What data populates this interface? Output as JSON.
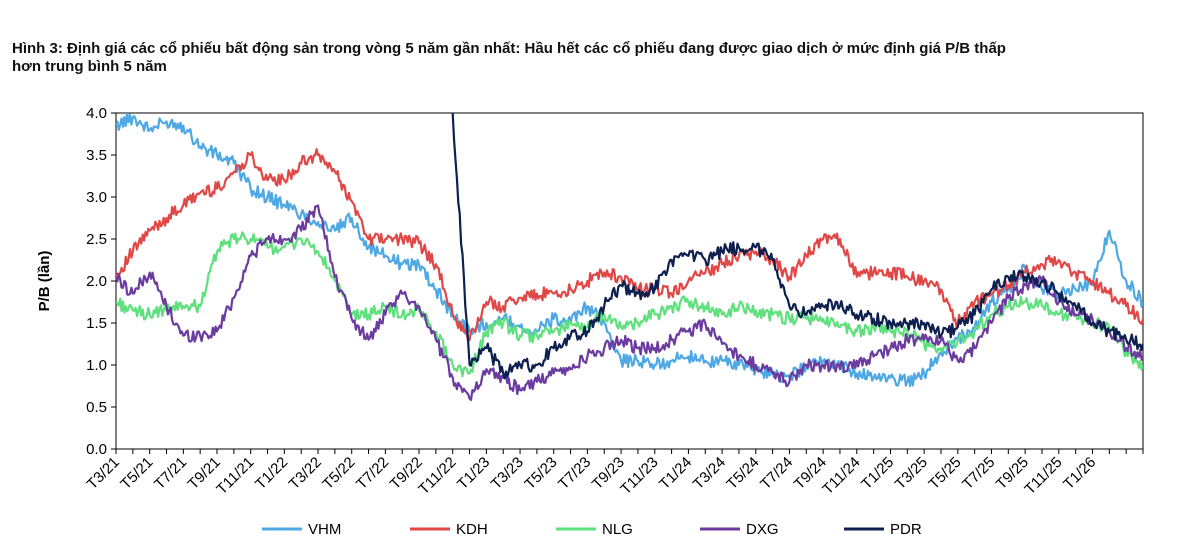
{
  "title_line1": "Hình 3: Định giá các cổ phiếu bất động sản trong vòng 5 năm gần nhất: Hầu hết các cổ phiếu đang được giao dịch ở mức định giá P/B thấp",
  "title_line2": "hơn trung bình 5 năm",
  "chart_data": {
    "type": "line",
    "title": "Hình 3: Định giá các cổ phiếu bất động sản trong vòng 5 năm gần nhất: Hầu hết các cổ phiếu đang được giao dịch ở mức định giá P/B thấp hơn trung bình 5 năm",
    "xlabel": "",
    "ylabel": "P/B (lần)",
    "ylim": [
      0,
      4
    ],
    "yticks": [
      "0.0",
      "0.5",
      "1.0",
      "1.5",
      "2.0",
      "2.5",
      "3.0",
      "3.5",
      "4.0"
    ],
    "xticks": [
      "T3/21",
      "T5/21",
      "T7/21",
      "T9/21",
      "T11/21",
      "T1/22",
      "T3/22",
      "T5/22",
      "T7/22",
      "T9/22",
      "T11/22",
      "T1/23",
      "T3/23",
      "T5/23",
      "T7/23",
      "T9/23",
      "T11/23",
      "T1/24",
      "T3/24",
      "T5/24",
      "T7/24",
      "T9/24",
      "T11/24",
      "T1/25",
      "T3/25",
      "T5/25",
      "T7/25",
      "T9/25",
      "T11/25",
      "T1/26"
    ],
    "x_months": [
      0,
      1,
      2,
      3,
      4,
      5,
      6,
      7,
      8,
      9,
      10,
      11,
      12,
      13,
      14,
      15,
      16,
      17,
      18,
      19,
      20,
      21,
      22,
      23,
      24,
      25,
      26,
      27,
      28,
      29,
      30,
      31,
      32,
      33,
      34,
      35,
      36,
      37,
      38,
      39,
      40,
      41,
      42,
      43,
      44,
      45,
      46,
      47,
      48,
      49,
      50,
      51,
      52,
      53,
      54,
      55,
      56,
      57,
      58,
      59,
      60,
      61
    ],
    "legend_position": "bottom",
    "grid": false,
    "series": [
      {
        "name": "VHM",
        "color": "#4EA8E4",
        "values": [
          3.85,
          3.95,
          3.8,
          3.9,
          3.85,
          3.6,
          3.5,
          3.4,
          3.1,
          3.0,
          2.9,
          2.8,
          2.7,
          2.6,
          2.75,
          2.4,
          2.3,
          2.2,
          2.2,
          1.9,
          1.6,
          1.4,
          1.5,
          1.55,
          1.45,
          1.4,
          1.55,
          1.5,
          1.7,
          1.5,
          1.05,
          1.05,
          1.0,
          1.05,
          1.1,
          1.05,
          1.05,
          1.0,
          0.95,
          0.9,
          0.85,
          1.0,
          1.05,
          1.0,
          0.9,
          0.85,
          0.85,
          0.8,
          0.9,
          1.15,
          1.3,
          1.45,
          1.75,
          1.9,
          2.15,
          1.9,
          1.85,
          1.9,
          1.95,
          2.6,
          2.0,
          1.75
        ]
      },
      {
        "name": "KDH",
        "color": "#E04848",
        "values": [
          2.05,
          2.35,
          2.6,
          2.75,
          2.9,
          3.05,
          3.1,
          3.3,
          3.5,
          3.2,
          3.2,
          3.4,
          3.5,
          3.3,
          2.95,
          2.5,
          2.5,
          2.5,
          2.45,
          2.2,
          1.6,
          1.3,
          1.75,
          1.7,
          1.8,
          1.85,
          1.85,
          1.9,
          2.0,
          2.1,
          2.05,
          1.9,
          1.9,
          1.85,
          2.0,
          2.1,
          2.2,
          2.3,
          2.35,
          2.25,
          2.05,
          2.3,
          2.5,
          2.5,
          2.05,
          2.1,
          2.1,
          2.05,
          2.0,
          1.9,
          1.5,
          1.75,
          1.85,
          1.95,
          2.1,
          2.2,
          2.25,
          2.1,
          2.0,
          1.85,
          1.7,
          1.55
        ]
      },
      {
        "name": "NLG",
        "color": "#5EE07C",
        "values": [
          1.75,
          1.65,
          1.6,
          1.65,
          1.7,
          1.7,
          2.35,
          2.5,
          2.5,
          2.4,
          2.4,
          2.5,
          2.35,
          2.0,
          1.6,
          1.6,
          1.7,
          1.6,
          1.65,
          1.4,
          1.0,
          0.9,
          1.4,
          1.5,
          1.35,
          1.35,
          1.4,
          1.5,
          1.45,
          1.6,
          1.45,
          1.5,
          1.6,
          1.7,
          1.75,
          1.7,
          1.6,
          1.7,
          1.65,
          1.6,
          1.55,
          1.55,
          1.55,
          1.45,
          1.4,
          1.45,
          1.4,
          1.4,
          1.25,
          1.2,
          1.3,
          1.4,
          1.6,
          1.7,
          1.75,
          1.7,
          1.6,
          1.6,
          1.5,
          1.45,
          1.15,
          1.0
        ]
      },
      {
        "name": "DXG",
        "color": "#6B3BA0",
        "values": [
          2.05,
          1.85,
          2.1,
          1.7,
          1.35,
          1.35,
          1.4,
          1.8,
          2.3,
          2.5,
          2.5,
          2.6,
          2.9,
          2.05,
          1.55,
          1.3,
          1.6,
          1.85,
          1.7,
          1.3,
          0.85,
          0.6,
          0.95,
          0.85,
          0.7,
          0.8,
          0.9,
          0.95,
          1.1,
          1.2,
          1.3,
          1.2,
          1.2,
          1.3,
          1.4,
          1.5,
          1.25,
          1.1,
          1.0,
          0.9,
          0.8,
          1.0,
          1.0,
          0.95,
          1.05,
          1.1,
          1.2,
          1.3,
          1.3,
          1.3,
          1.05,
          1.2,
          1.5,
          1.8,
          1.95,
          2.0,
          1.75,
          1.6,
          1.55,
          1.4,
          1.2,
          1.1
        ]
      },
      {
        "name": "PDR",
        "color": "#0E2050",
        "values": [
          null,
          null,
          null,
          null,
          null,
          null,
          null,
          null,
          null,
          null,
          null,
          null,
          null,
          null,
          null,
          null,
          null,
          null,
          null,
          null,
          4.0,
          1.0,
          1.2,
          0.9,
          1.0,
          1.0,
          1.2,
          1.35,
          1.4,
          1.7,
          1.95,
          1.85,
          1.9,
          2.25,
          2.3,
          2.25,
          2.35,
          2.4,
          2.4,
          2.25,
          1.7,
          1.6,
          1.7,
          1.7,
          1.6,
          1.55,
          1.5,
          1.5,
          1.5,
          1.35,
          1.45,
          1.6,
          1.9,
          2.05,
          2.05,
          2.0,
          1.85,
          1.7,
          1.5,
          1.4,
          1.3,
          1.25
        ]
      }
    ]
  }
}
